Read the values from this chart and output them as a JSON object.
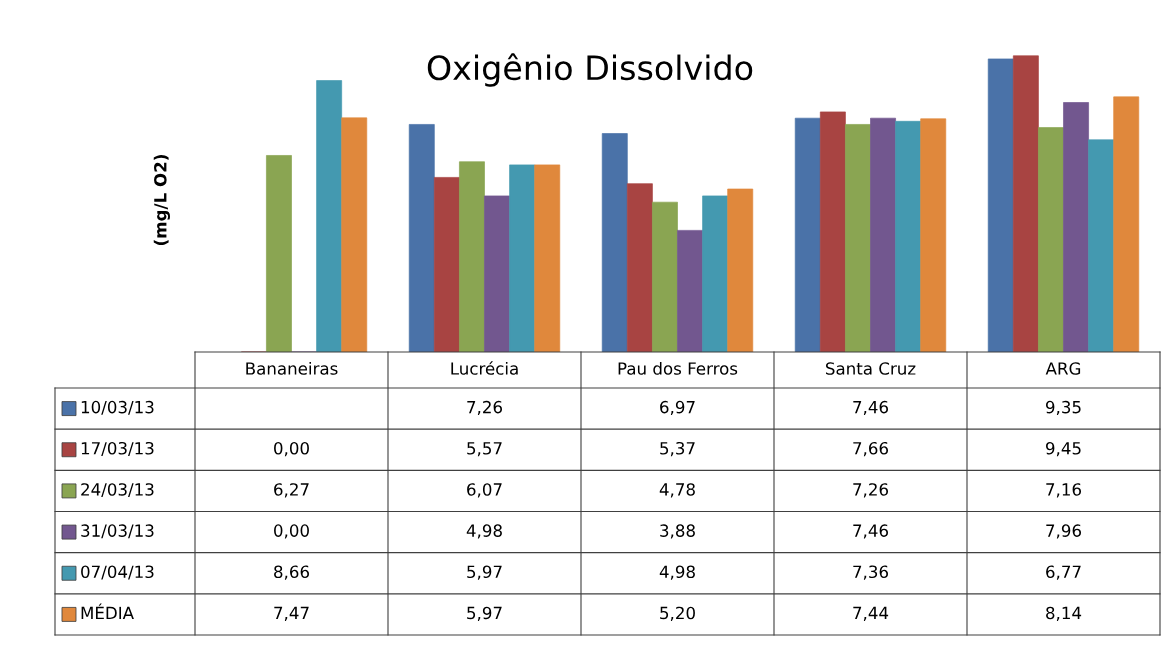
{
  "chart_data": {
    "type": "bar",
    "title": "Oxigênio Dissolvido",
    "ylabel": "(mg/L O2)",
    "categories": [
      "Bananeiras",
      "Lucrécia",
      "Pau dos Ferros",
      "Santa Cruz",
      "ARG"
    ],
    "tick_labels": false,
    "legend": "bottom left",
    "series": [
      {
        "name": "10/03/13",
        "color": "#4a72a8",
        "values": [
          null,
          7.26,
          6.97,
          7.46,
          9.35
        ],
        "value_labels": [
          null,
          "7,26",
          "6,97",
          "7,46",
          "9,35"
        ]
      },
      {
        "name": "17/03/13",
        "color": "#a84442",
        "values": [
          0.0,
          5.57,
          5.37,
          7.66,
          9.45
        ],
        "value_labels": [
          "0,00",
          "5,57",
          "5,37",
          "7,66",
          "9,45"
        ]
      },
      {
        "name": "24/03/13",
        "color": "#8aa552",
        "values": [
          6.27,
          6.07,
          4.78,
          7.26,
          7.16
        ],
        "value_labels": [
          "6,27",
          "6,07",
          "4,78",
          "7,26",
          "7,16"
        ]
      },
      {
        "name": "31/03/13",
        "color": "#72578f",
        "values": [
          0.0,
          4.98,
          3.88,
          7.46,
          7.96
        ],
        "value_labels": [
          "0,00",
          "4,98",
          "3,88",
          "7,46",
          "7,96"
        ]
      },
      {
        "name": "07/04/13",
        "color": "#4499b0",
        "values": [
          8.66,
          5.97,
          4.98,
          7.36,
          6.77
        ],
        "value_labels": [
          "8,66",
          "5,97",
          "4,98",
          "7,36",
          "6,77"
        ]
      },
      {
        "name": "MÉDIA",
        "color": "#e0883c",
        "values": [
          7.47,
          5.97,
          5.2,
          7.44,
          8.14
        ],
        "value_labels": [
          "7,47",
          "5,97",
          "5,20",
          "7,44",
          "8,14"
        ]
      }
    ]
  }
}
